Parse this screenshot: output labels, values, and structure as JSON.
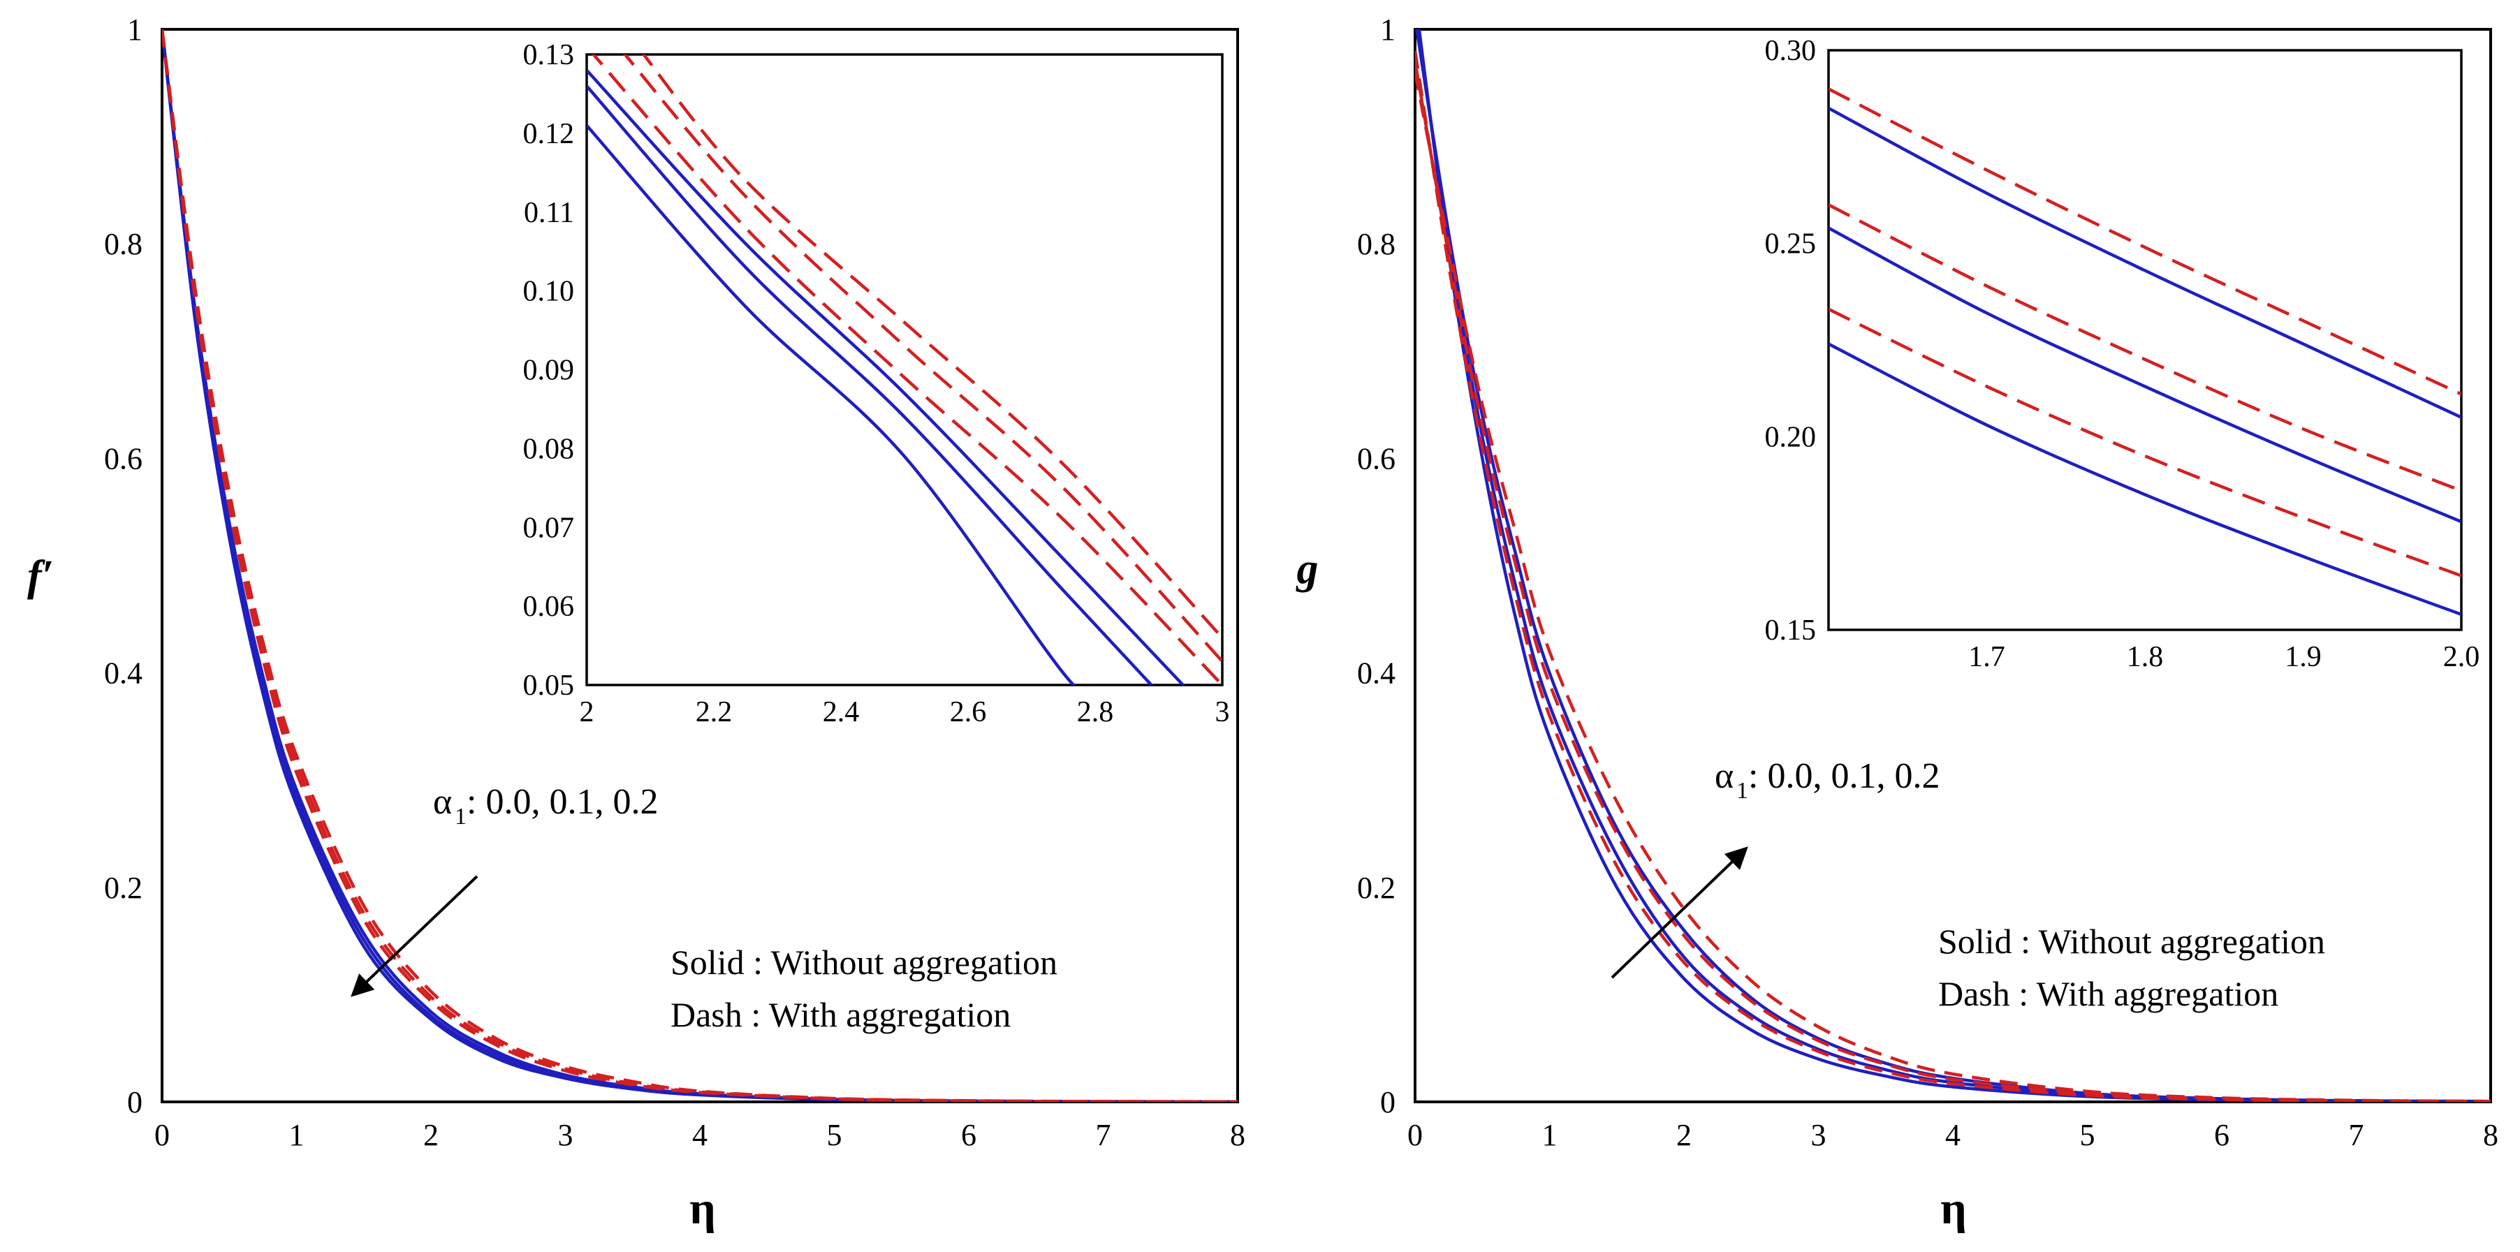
{
  "chart_data": [
    {
      "id": "left",
      "type": "line",
      "xlabel": "η",
      "ylabel": "f′",
      "xlim": [
        0,
        8
      ],
      "ylim": [
        0,
        1
      ],
      "xticks": [
        "0",
        "1",
        "2",
        "3",
        "4",
        "5",
        "6",
        "7",
        "8"
      ],
      "yticks": [
        "0",
        "0.2",
        "0.4",
        "0.6",
        "0.8",
        "1"
      ],
      "series": [
        {
          "name": "Without aggregation, α1 = 0.0",
          "style": "solid",
          "color": "#1f1fbf",
          "x": [
            0,
            0.25,
            0.5,
            0.75,
            1,
            1.5,
            2,
            2.5,
            3,
            3.5,
            4,
            5,
            6,
            7,
            8
          ],
          "y": [
            1,
            0.725,
            0.526,
            0.381,
            0.277,
            0.145,
            0.077,
            0.04,
            0.022,
            0.012,
            0.0065,
            0.002,
            0.0006,
            0.0002,
            0.0001
          ]
        },
        {
          "name": "Without aggregation, α1 = 0.1",
          "style": "solid",
          "color": "#1f1fbf",
          "x": [
            0,
            0.25,
            0.5,
            0.75,
            1,
            1.5,
            2,
            2.5,
            3,
            3.5,
            4,
            5,
            6,
            7,
            8
          ],
          "y": [
            1,
            0.73,
            0.533,
            0.389,
            0.284,
            0.151,
            0.08,
            0.043,
            0.023,
            0.013,
            0.007,
            0.0021,
            0.0007,
            0.0002,
            0.0001
          ]
        },
        {
          "name": "Without aggregation, α1 = 0.2",
          "style": "solid",
          "color": "#1f1fbf",
          "x": [
            0,
            0.25,
            0.5,
            0.75,
            1,
            1.5,
            2,
            2.5,
            3,
            3.5,
            4,
            5,
            6,
            7,
            8
          ],
          "y": [
            1,
            0.735,
            0.54,
            0.397,
            0.291,
            0.157,
            0.084,
            0.046,
            0.025,
            0.014,
            0.0075,
            0.0023,
            0.0008,
            0.0003,
            0.0001
          ]
        },
        {
          "name": "With aggregation, α1 = 0.0",
          "style": "dash",
          "color": "#d42020",
          "x": [
            0,
            0.25,
            0.5,
            0.75,
            1,
            1.5,
            2,
            2.5,
            3,
            3.5,
            4,
            5,
            6,
            7,
            8
          ],
          "y": [
            1,
            0.745,
            0.555,
            0.413,
            0.307,
            0.17,
            0.094,
            0.052,
            0.029,
            0.016,
            0.0088,
            0.0028,
            0.0009,
            0.0003,
            0.0001
          ]
        },
        {
          "name": "With aggregation, α1 = 0.1",
          "style": "dash",
          "color": "#d42020",
          "x": [
            0,
            0.25,
            0.5,
            0.75,
            1,
            1.5,
            2,
            2.5,
            3,
            3.5,
            4,
            5,
            6,
            7,
            8
          ],
          "y": [
            1,
            0.75,
            0.562,
            0.421,
            0.315,
            0.176,
            0.098,
            0.055,
            0.031,
            0.017,
            0.0094,
            0.003,
            0.001,
            0.0003,
            0.0001
          ]
        },
        {
          "name": "With aggregation, α1 = 0.2",
          "style": "dash",
          "color": "#d42020",
          "x": [
            0,
            0.25,
            0.5,
            0.75,
            1,
            1.5,
            2,
            2.5,
            3,
            3.5,
            4,
            5,
            6,
            7,
            8
          ],
          "y": [
            1,
            0.755,
            0.569,
            0.429,
            0.323,
            0.183,
            0.103,
            0.058,
            0.033,
            0.019,
            0.01,
            0.0032,
            0.0011,
            0.0004,
            0.0001
          ]
        }
      ],
      "inset": {
        "xlim": [
          2,
          3
        ],
        "ylim": [
          0.05,
          0.13
        ],
        "xticks": [
          "2",
          "2.2",
          "2.4",
          "2.6",
          "2.8",
          "3"
        ],
        "yticks": [
          "0.05",
          "0.06",
          "0.07",
          "0.08",
          "0.09",
          "0.10",
          "0.11",
          "0.12",
          "0.13"
        ],
        "series": [
          {
            "style": "solid",
            "color": "#1f1fbf",
            "x": [
              2,
              2.25,
              2.5,
              2.75,
              2.8
            ],
            "y": [
              0.121,
              0.098,
              0.079,
              0.0515,
              0.049
            ]
          },
          {
            "style": "solid",
            "color": "#1f1fbf",
            "x": [
              2,
              2.25,
              2.5,
              2.75,
              2.9
            ],
            "y": [
              0.126,
              0.103,
              0.084,
              0.062,
              0.049
            ]
          },
          {
            "style": "solid",
            "color": "#1f1fbf",
            "x": [
              2,
              2.25,
              2.5,
              2.75,
              2.95
            ],
            "y": [
              0.128,
              0.106,
              0.087,
              0.066,
              0.049
            ]
          },
          {
            "style": "dash",
            "color": "#d42020",
            "x": [
              2,
              2.25,
              2.5,
              2.75,
              3
            ],
            "y": [
              0.131,
              0.108,
              0.089,
              0.071,
              0.05
            ]
          },
          {
            "style": "dash",
            "color": "#d42020",
            "x": [
              2.05,
              2.25,
              2.5,
              2.75,
              3
            ],
            "y": [
              0.131,
              0.112,
              0.093,
              0.075,
              0.053
            ]
          },
          {
            "style": "dash",
            "color": "#d42020",
            "x": [
              2.08,
              2.25,
              2.5,
              2.75,
              3
            ],
            "y": [
              0.131,
              0.114,
              0.096,
              0.078,
              0.056
            ]
          }
        ]
      },
      "annotation": {
        "symbol": "α",
        "subscript": "1",
        "values": " : 0.0, 0.1, 0.2",
        "arrow": "down-left"
      },
      "legend": {
        "solid": "Solid : Without aggregation",
        "dash": "Dash : With aggregation"
      }
    },
    {
      "id": "right",
      "type": "line",
      "xlabel": "η",
      "ylabel": "g",
      "xlim": [
        0,
        8
      ],
      "ylim": [
        0,
        1
      ],
      "xticks": [
        "0",
        "1",
        "2",
        "3",
        "4",
        "5",
        "6",
        "7",
        "8"
      ],
      "yticks": [
        "0",
        "0.2",
        "0.4",
        "0.6",
        "0.8",
        "1"
      ],
      "series": [
        {
          "name": "Without aggregation, α1 = 0.0",
          "style": "solid",
          "color": "#1f1fbf",
          "x": [
            0,
            0.25,
            0.5,
            0.75,
            1,
            1.5,
            2,
            2.5,
            3,
            3.5,
            4,
            5,
            6,
            7,
            8
          ],
          "y": [
            1.03,
            0.79,
            0.6,
            0.45,
            0.34,
            0.2,
            0.115,
            0.067,
            0.04,
            0.024,
            0.014,
            0.005,
            0.0018,
            0.0007,
            0.0003
          ]
        },
        {
          "name": "Without aggregation, α1 = 0.1",
          "style": "solid",
          "color": "#1f1fbf",
          "x": [
            0,
            0.25,
            0.5,
            0.75,
            1,
            1.5,
            2,
            2.5,
            3,
            3.5,
            4,
            5,
            6,
            7,
            8
          ],
          "y": [
            1.02,
            0.8,
            0.62,
            0.48,
            0.37,
            0.23,
            0.135,
            0.081,
            0.049,
            0.03,
            0.018,
            0.0065,
            0.0024,
            0.0009,
            0.0004
          ]
        },
        {
          "name": "Without aggregation, α1 = 0.2",
          "style": "solid",
          "color": "#1f1fbf",
          "x": [
            0,
            0.25,
            0.5,
            0.75,
            1,
            1.5,
            2,
            2.5,
            3,
            3.5,
            4,
            5,
            6,
            7,
            8
          ],
          "y": [
            1.01,
            0.81,
            0.64,
            0.51,
            0.4,
            0.255,
            0.16,
            0.097,
            0.059,
            0.036,
            0.022,
            0.008,
            0.003,
            0.0011,
            0.0005
          ]
        },
        {
          "name": "With aggregation, α1 = 0.0",
          "style": "dash",
          "color": "#d42020",
          "x": [
            0,
            0.25,
            0.5,
            0.75,
            1,
            1.5,
            2,
            2.5,
            3,
            3.5,
            4,
            5,
            6,
            7,
            8
          ],
          "y": [
            0.98,
            0.78,
            0.61,
            0.47,
            0.36,
            0.22,
            0.13,
            0.078,
            0.047,
            0.028,
            0.017,
            0.006,
            0.0022,
            0.0008,
            0.0003
          ]
        },
        {
          "name": "With aggregation, α1 = 0.1",
          "style": "dash",
          "color": "#d42020",
          "x": [
            0,
            0.25,
            0.5,
            0.75,
            1,
            1.5,
            2,
            2.5,
            3,
            3.5,
            4,
            5,
            6,
            7,
            8
          ],
          "y": [
            0.97,
            0.79,
            0.63,
            0.5,
            0.39,
            0.25,
            0.155,
            0.094,
            0.057,
            0.035,
            0.021,
            0.0078,
            0.0029,
            0.0011,
            0.0004
          ]
        },
        {
          "name": "With aggregation, α1 = 0.2",
          "style": "dash",
          "color": "#d42020",
          "x": [
            0,
            0.25,
            0.5,
            0.75,
            1,
            1.5,
            2,
            2.5,
            3,
            3.5,
            4,
            5,
            6,
            7,
            8
          ],
          "y": [
            0.96,
            0.8,
            0.65,
            0.53,
            0.42,
            0.28,
            0.18,
            0.113,
            0.07,
            0.043,
            0.026,
            0.0098,
            0.0037,
            0.0014,
            0.0005
          ]
        }
      ],
      "inset": {
        "xlim": [
          1.6,
          2.0
        ],
        "ylim": [
          0.15,
          0.3
        ],
        "xticks": [
          "1.7",
          "1.8",
          "1.9",
          "2.0"
        ],
        "xtick_values": [
          1.7,
          1.8,
          1.9,
          2.0
        ],
        "yticks": [
          "0.15",
          "0.20",
          "0.25",
          "0.30"
        ],
        "series": [
          {
            "style": "solid",
            "color": "#1f1fbf",
            "x": [
              1.6,
              1.7,
              1.8,
              1.9,
              2.0
            ],
            "y": [
              0.224,
              0.203,
              0.185,
              0.169,
              0.154
            ]
          },
          {
            "style": "solid",
            "color": "#1f1fbf",
            "x": [
              1.6,
              1.7,
              1.8,
              1.9,
              2.0
            ],
            "y": [
              0.254,
              0.232,
              0.213,
              0.195,
              0.178
            ]
          },
          {
            "style": "solid",
            "color": "#1f1fbf",
            "x": [
              1.6,
              1.7,
              1.8,
              1.9,
              2.0
            ],
            "y": [
              0.285,
              0.263,
              0.243,
              0.224,
              0.205
            ]
          },
          {
            "style": "dash",
            "color": "#d42020",
            "x": [
              1.6,
              1.7,
              1.8,
              1.9,
              2.0
            ],
            "y": [
              0.233,
              0.213,
              0.195,
              0.179,
              0.164
            ]
          },
          {
            "style": "dash",
            "color": "#d42020",
            "x": [
              1.6,
              1.7,
              1.8,
              1.9,
              2.0
            ],
            "y": [
              0.26,
              0.239,
              0.22,
              0.202,
              0.186
            ]
          },
          {
            "style": "dash",
            "color": "#d42020",
            "x": [
              1.6,
              1.7,
              1.8,
              1.9,
              2.0
            ],
            "y": [
              0.29,
              0.269,
              0.249,
              0.23,
              0.211
            ]
          }
        ]
      },
      "annotation": {
        "symbol": "α",
        "subscript": "1",
        "values": " : 0.0, 0.1, 0.2",
        "arrow": "up-right"
      },
      "legend": {
        "solid": "Solid : Without aggregation",
        "dash": "Dash : With aggregation"
      }
    }
  ]
}
